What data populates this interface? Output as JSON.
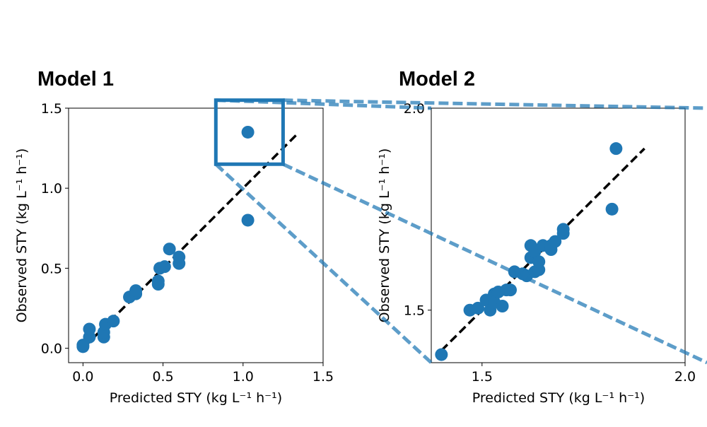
{
  "chart_data": [
    {
      "type": "scatter",
      "title": "Model 1",
      "xlabel": "Predicted STY (kg L⁻¹ h⁻¹)",
      "ylabel": "Observed STY (kg L⁻¹ h⁻¹)",
      "xlim": [
        -0.09,
        1.5
      ],
      "ylim": [
        -0.09,
        1.5
      ],
      "xticks": [
        "0.0",
        "0.5",
        "1.0",
        "1.5"
      ],
      "yticks": [
        "0.0",
        "0.5",
        "1.0",
        "1.5"
      ],
      "grid": false,
      "marker_color": "#1f77b4",
      "reference_line": {
        "style": "dashed",
        "color": "#000000",
        "from": [
          0.0,
          0.0
        ],
        "to": [
          1.33,
          1.33
        ]
      },
      "zoom_box": {
        "x": [
          0.83,
          1.25
        ],
        "y": [
          1.15,
          1.55
        ],
        "color": "#1f77b4"
      },
      "series": [
        {
          "x": [
            0.0,
            0.0,
            0.04,
            0.04,
            0.13,
            0.13,
            0.14,
            0.19,
            0.29,
            0.33,
            0.33,
            0.47,
            0.47,
            0.48,
            0.51,
            0.54,
            0.6,
            0.6,
            1.03,
            1.03
          ],
          "y": [
            0.01,
            0.02,
            0.07,
            0.12,
            0.07,
            0.1,
            0.15,
            0.17,
            0.32,
            0.34,
            0.36,
            0.4,
            0.42,
            0.5,
            0.51,
            0.62,
            0.53,
            0.57,
            0.8,
            1.35
          ]
        }
      ]
    },
    {
      "type": "scatter",
      "title": "Model 2",
      "xlabel": "Predicted STY (kg L⁻¹ h⁻¹)",
      "ylabel": "Observed STY (kg L⁻¹ h⁻¹)",
      "xlim": [
        1.375,
        2.0
      ],
      "ylim": [
        1.37,
        2.0
      ],
      "xticks": [
        "1.5",
        "2.0"
      ],
      "yticks": [
        "1.5",
        "2.0"
      ],
      "grid": false,
      "marker_color": "#1f77b4",
      "reference_line": {
        "style": "dashed",
        "color": "#000000",
        "from": [
          1.4,
          1.4
        ],
        "to": [
          1.9,
          1.9
        ]
      },
      "series": [
        {
          "x": [
            1.4,
            1.47,
            1.49,
            1.51,
            1.52,
            1.53,
            1.53,
            1.54,
            1.55,
            1.56,
            1.57,
            1.58,
            1.6,
            1.61,
            1.62,
            1.62,
            1.63,
            1.63,
            1.64,
            1.64,
            1.65,
            1.67,
            1.67,
            1.68,
            1.7,
            1.7,
            1.82,
            1.83
          ],
          "y": [
            1.39,
            1.5,
            1.505,
            1.525,
            1.5,
            1.54,
            1.52,
            1.545,
            1.51,
            1.55,
            1.55,
            1.595,
            1.59,
            1.585,
            1.63,
            1.66,
            1.595,
            1.645,
            1.6,
            1.62,
            1.66,
            1.65,
            1.66,
            1.67,
            1.69,
            1.7,
            1.75,
            1.9
          ]
        }
      ]
    }
  ]
}
